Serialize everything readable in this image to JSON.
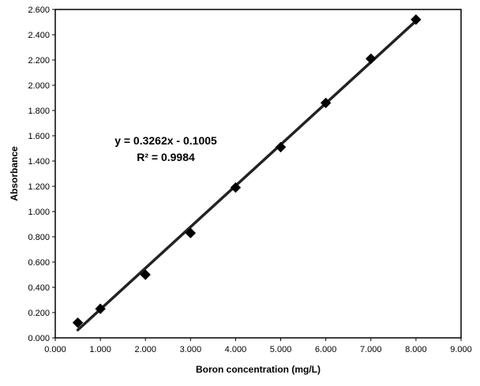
{
  "chart_data": {
    "type": "scatter",
    "title": "",
    "xlabel": "Boron concentration (mg/L)",
    "ylabel": "Absorbance",
    "xlim": [
      0,
      9
    ],
    "ylim": [
      0,
      2.6
    ],
    "x_ticks": [
      "0.000",
      "1.000",
      "2.000",
      "3.000",
      "4.000",
      "5.000",
      "6.000",
      "7.000",
      "8.000",
      "9.000"
    ],
    "y_ticks": [
      "0.000",
      "0.200",
      "0.400",
      "0.600",
      "0.800",
      "1.000",
      "1.200",
      "1.400",
      "1.600",
      "1.800",
      "2.000",
      "2.200",
      "2.400",
      "2.600"
    ],
    "grid": false,
    "legend": "none",
    "series": [
      {
        "points": [
          {
            "x": 0.5,
            "y": 0.12
          },
          {
            "x": 1.0,
            "y": 0.23
          },
          {
            "x": 2.0,
            "y": 0.5
          },
          {
            "x": 3.0,
            "y": 0.83
          },
          {
            "x": 4.0,
            "y": 1.19
          },
          {
            "x": 5.0,
            "y": 1.51
          },
          {
            "x": 6.0,
            "y": 1.86
          },
          {
            "x": 7.0,
            "y": 2.21
          },
          {
            "x": 8.0,
            "y": 2.52
          }
        ],
        "color": "#000000"
      }
    ],
    "trendline": {
      "type": "linear",
      "slope": 0.3262,
      "intercept": -0.1005,
      "x_range": [
        0.5,
        8.0
      ],
      "color": "#222222"
    },
    "annotations": {
      "equation": "y = 0.3262x - 0.1005",
      "r_squared": "R² = 0.9984"
    }
  }
}
